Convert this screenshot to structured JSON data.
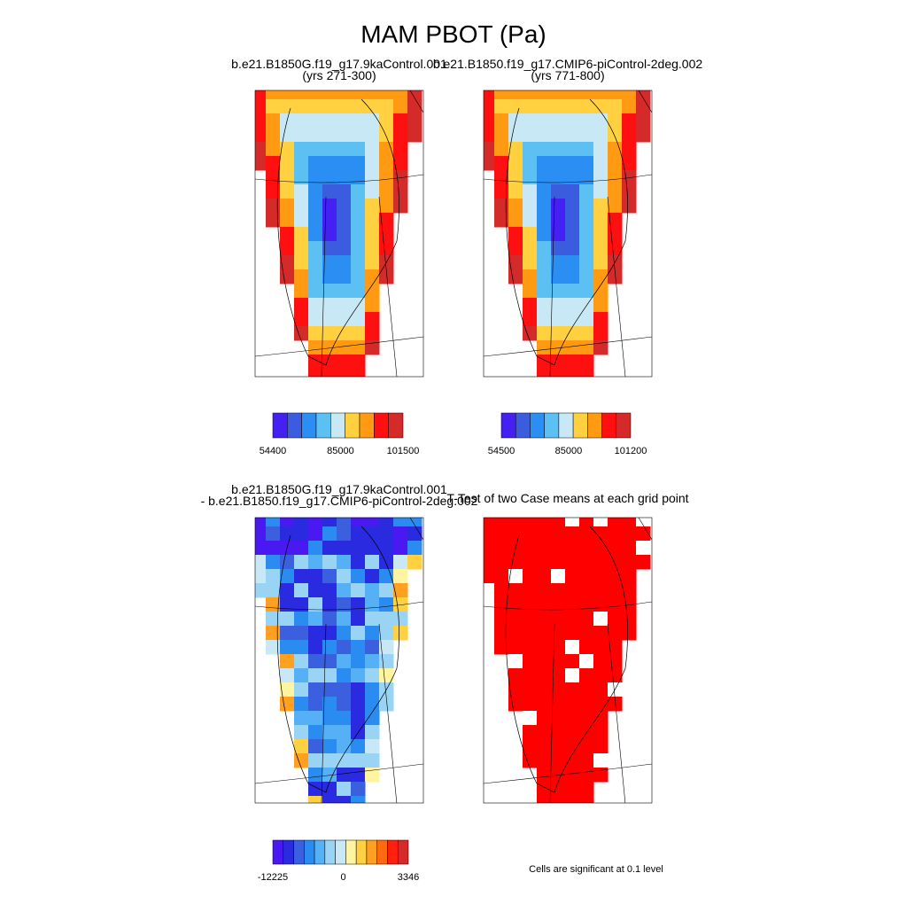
{
  "title": "MAM PBOT (Pa)",
  "panels": [
    {
      "lines": [
        "b.e21.B1850G.f19_g17.9kaControl.001",
        "(yrs 271-300)"
      ],
      "colorbar": {
        "colors": [
          "#4420f2",
          "#3c5ce0",
          "#2a8ef2",
          "#5cc0f2",
          "#c8e8f5",
          "#ffd040",
          "#ff9a12",
          "#ff1010",
          "#d42a2a"
        ],
        "labels": [
          "54400",
          "85000",
          "101500"
        ]
      }
    },
    {
      "lines": [
        "b.e21.B1850.f19_g17.CMIP6-piControl-2deg.002",
        "(yrs 771-800)"
      ],
      "colorbar": {
        "colors": [
          "#4420f2",
          "#3c5ce0",
          "#2a8ef2",
          "#5cc0f2",
          "#c8e8f5",
          "#ffd040",
          "#ff9a12",
          "#ff1010",
          "#d42a2a"
        ],
        "labels": [
          "54500",
          "85000",
          "101200"
        ]
      }
    },
    {
      "lines": [
        "b.e21.B1850G.f19_g17.9kaControl.001",
        "- b.e21.B1850.f19_g17.CMIP6-piControl-2deg.002"
      ],
      "colorbar": {
        "colors": [
          "#4a18f0",
          "#2a2ae0",
          "#3a60e0",
          "#2a8cf0",
          "#55b0f5",
          "#9ad4f5",
          "#c8e8f5",
          "#fff4a0",
          "#ffd040",
          "#ffa020",
          "#ff6a10",
          "#ff2010",
          "#d42a2a"
        ],
        "labels": [
          "-12225",
          "0",
          "3346"
        ]
      }
    },
    {
      "lines": [
        "T-Test of two Case means at each grid point"
      ],
      "note": "Cells are significant at 0.1 level"
    }
  ]
}
